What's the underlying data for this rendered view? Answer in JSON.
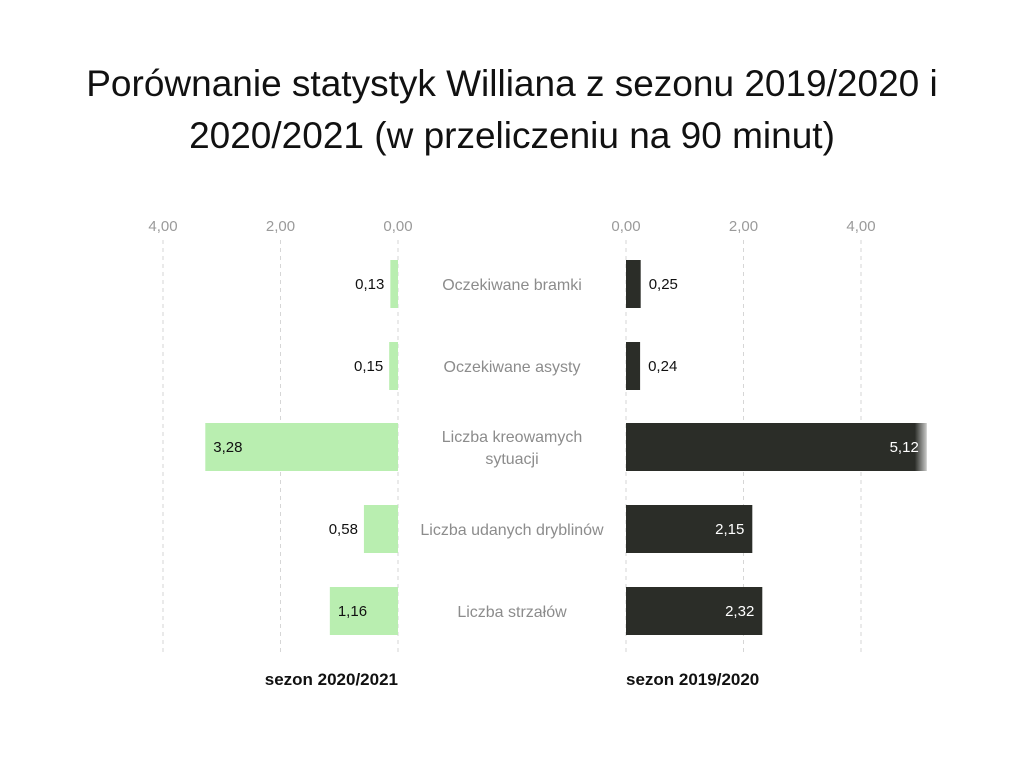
{
  "title": "Porównanie statystyk Williana z sezonu 2019/2020 i 2020/2021 (w przeliczeniu na 90 minut)",
  "chart_data": {
    "type": "bar",
    "orientation": "horizontal",
    "layout": "back-to-back",
    "title": "Porównanie statystyk Williana z sezonu 2019/2020 i 2020/2021 (w przeliczeniu na 90 minut)",
    "categories": [
      [
        "Oczekiwane bramki"
      ],
      [
        "Oczekiwane asysty"
      ],
      [
        "Liczba kreowamych",
        "sytuacji"
      ],
      [
        "Liczba udanych dryblinów"
      ],
      [
        "Liczba strzałów"
      ]
    ],
    "series": [
      {
        "name": "sezon 2020/2021",
        "side": "left",
        "color": "#b9eeb0",
        "values": [
          0.13,
          0.15,
          3.28,
          0.58,
          1.16
        ],
        "labels": [
          "0,13",
          "0,15",
          "3,28",
          "0,58",
          "1,16"
        ]
      },
      {
        "name": "sezon 2019/2020",
        "side": "right",
        "color": "#2b2d28",
        "values": [
          0.25,
          0.24,
          5.12,
          2.15,
          2.32
        ],
        "labels": [
          "0,25",
          "0,24",
          "5,12",
          "2,15",
          "2,32"
        ]
      }
    ],
    "axis_ticks": [
      0,
      2,
      4
    ],
    "axis_tick_labels": [
      "0,00",
      "2,00",
      "4,00"
    ],
    "xlim": [
      0,
      5.2
    ],
    "grid": true
  }
}
